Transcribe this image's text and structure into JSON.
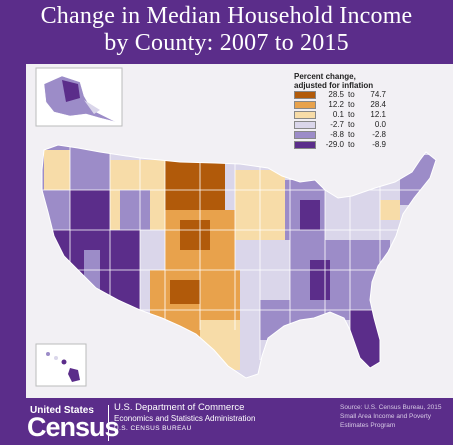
{
  "title": {
    "line1": "Change in Median Household Income",
    "line2": "by County: 2007 to 2015"
  },
  "legend": {
    "title_line1": "Percent change,",
    "title_line2": "adjusted for inflation",
    "items": [
      {
        "low": "28.5",
        "to": "to",
        "high": "74.7",
        "color": "#b15a0a"
      },
      {
        "low": "12.2",
        "to": "to",
        "high": "28.4",
        "color": "#e8a24c"
      },
      {
        "low": "0.1",
        "to": "to",
        "high": "12.1",
        "color": "#f7dca8"
      },
      {
        "low": "-2.7",
        "to": "to",
        "high": "0.0",
        "color": "#dad6ea"
      },
      {
        "low": "-8.8",
        "to": "to",
        "high": "-2.8",
        "color": "#9c8cc8"
      },
      {
        "low": "-29.0",
        "to": "to",
        "high": "-8.9",
        "color": "#5b2d8a"
      }
    ]
  },
  "footer": {
    "brand_small": "United States",
    "brand_big": "Census",
    "dept_line1": "U.S. Department of Commerce",
    "dept_line2": "Economics and Statistics Administration",
    "dept_line3": "U.S. CENSUS BUREAU",
    "source": "Source: U.S. Census Bureau, 2015 Small Area Income and Poverty Estimates Program"
  },
  "colors": {
    "band": "#5b2d8a",
    "map_background": "#f2f0f4",
    "states": "#ffffff"
  }
}
